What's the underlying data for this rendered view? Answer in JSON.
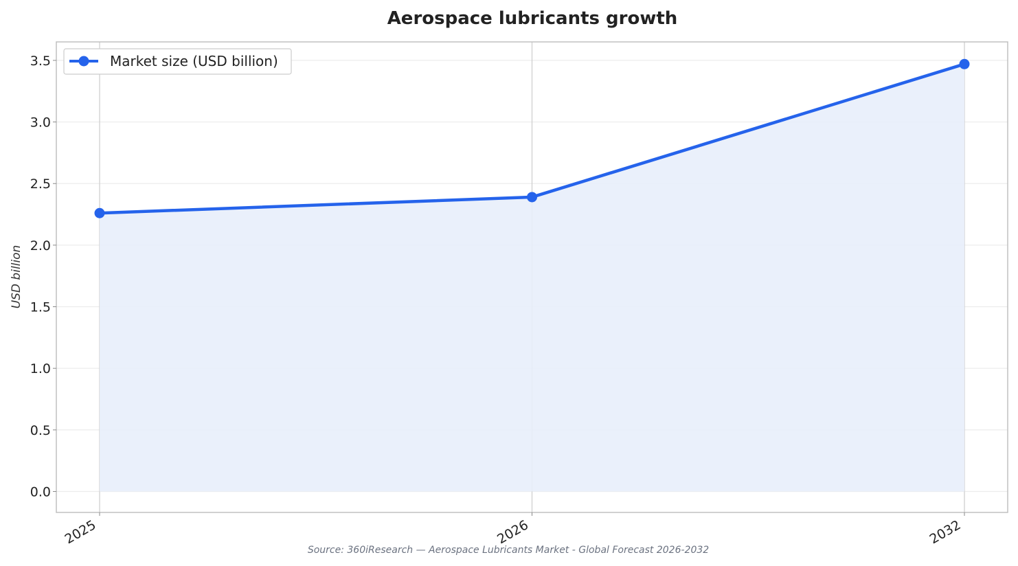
{
  "chart_data": {
    "type": "line",
    "title": "Aerospace lubricants growth",
    "xlabel": "",
    "ylabel": "USD billion",
    "categories": [
      "2025",
      "2026",
      "2032"
    ],
    "series": [
      {
        "name": "Market size (USD billion)",
        "values": [
          2.26,
          2.39,
          3.47
        ]
      }
    ],
    "ylim": [
      -0.17,
      3.65
    ],
    "yticks": [
      "0.0",
      "0.5",
      "1.0",
      "1.5",
      "2.0",
      "2.5",
      "3.0",
      "3.5"
    ],
    "area_fill": true,
    "grid": true,
    "legend": "top-left",
    "colors": {
      "line": "#2563eb",
      "fill": "#e8eefb"
    },
    "source": "Source: 360iResearch — Aerospace Lubricants Market - Global Forecast 2026-2032"
  }
}
